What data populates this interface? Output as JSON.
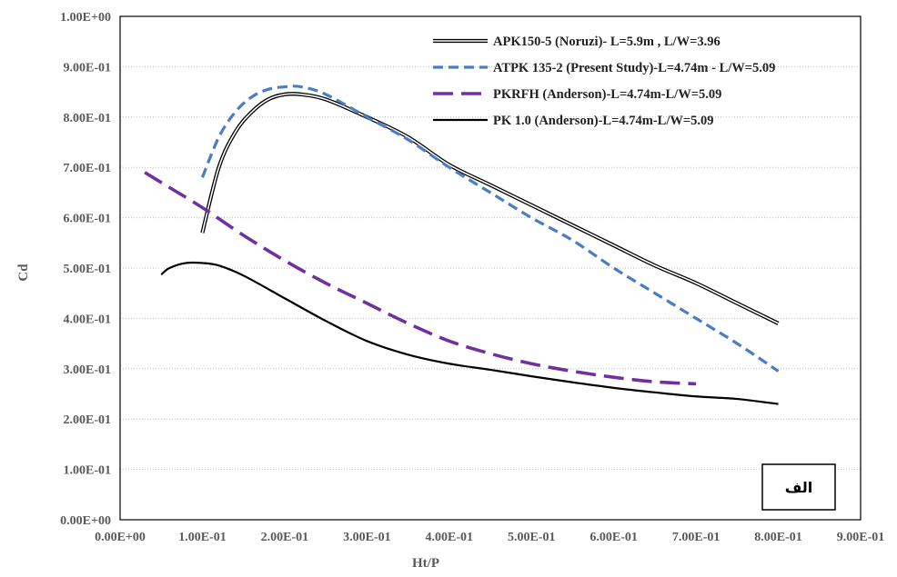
{
  "chart_data": {
    "type": "line",
    "title": "",
    "xlabel": "Ht/P",
    "ylabel": "Cd",
    "xlim": [
      0,
      0.9
    ],
    "ylim": [
      0,
      1.0
    ],
    "x_ticks": [
      0,
      0.1,
      0.2,
      0.3,
      0.4,
      0.5,
      0.6,
      0.7,
      0.8,
      0.9
    ],
    "x_tick_labels": [
      "0.00E+00",
      "1.00E-01",
      "2.00E-01",
      "3.00E-01",
      "4.00E-01",
      "5.00E-01",
      "6.00E-01",
      "7.00E-01",
      "8.00E-01",
      "9.00E-01"
    ],
    "y_ticks": [
      0,
      0.1,
      0.2,
      0.3,
      0.4,
      0.5,
      0.6,
      0.7,
      0.8,
      0.9,
      1.0
    ],
    "y_tick_labels": [
      "0.00E+00",
      "1.00E-01",
      "2.00E-01",
      "3.00E-01",
      "4.00E-01",
      "5.00E-01",
      "6.00E-01",
      "7.00E-01",
      "8.00E-01",
      "9.00E-01",
      "1.00E+00"
    ],
    "grid": true,
    "legend_position": "top-right",
    "inset_label": "الف",
    "series": [
      {
        "name": "APK150-5 (Noruzi)- L=5.9m , L/W=3.96",
        "style": "double-line",
        "color": "#000000",
        "x": [
          0.1,
          0.12,
          0.14,
          0.16,
          0.18,
          0.2,
          0.22,
          0.25,
          0.3,
          0.35,
          0.4,
          0.45,
          0.5,
          0.55,
          0.6,
          0.65,
          0.7,
          0.75,
          0.8
        ],
        "y": [
          0.57,
          0.7,
          0.77,
          0.81,
          0.835,
          0.845,
          0.845,
          0.835,
          0.8,
          0.76,
          0.705,
          0.665,
          0.625,
          0.585,
          0.545,
          0.505,
          0.47,
          0.43,
          0.39
        ]
      },
      {
        "name": "ATPK 135-2 (Present Study)-L=4.74m - L/W=5.09",
        "style": "dashed",
        "color": "#4a7dc3",
        "x": [
          0.1,
          0.12,
          0.14,
          0.16,
          0.18,
          0.2,
          0.22,
          0.25,
          0.3,
          0.35,
          0.4,
          0.45,
          0.5,
          0.55,
          0.6,
          0.65,
          0.7,
          0.75,
          0.8
        ],
        "y": [
          0.68,
          0.76,
          0.81,
          0.84,
          0.855,
          0.86,
          0.86,
          0.845,
          0.8,
          0.755,
          0.7,
          0.65,
          0.6,
          0.555,
          0.5,
          0.45,
          0.4,
          0.35,
          0.295
        ]
      },
      {
        "name": "PKRFH (Anderson)-L=4.74m-L/W=5.09",
        "style": "dashed-thick",
        "color": "#7030a0",
        "x": [
          0.03,
          0.05,
          0.1,
          0.15,
          0.2,
          0.25,
          0.3,
          0.35,
          0.4,
          0.45,
          0.5,
          0.55,
          0.6,
          0.65,
          0.7
        ],
        "y": [
          0.69,
          0.67,
          0.62,
          0.565,
          0.515,
          0.47,
          0.43,
          0.39,
          0.355,
          0.33,
          0.31,
          0.295,
          0.283,
          0.274,
          0.27
        ]
      },
      {
        "name": "PK 1.0 (Anderson)-L=4.74m-L/W=5.09",
        "style": "solid",
        "color": "#000000",
        "x": [
          0.05,
          0.06,
          0.08,
          0.1,
          0.12,
          0.15,
          0.2,
          0.25,
          0.3,
          0.35,
          0.4,
          0.45,
          0.5,
          0.55,
          0.6,
          0.65,
          0.7,
          0.75,
          0.8
        ],
        "y": [
          0.487,
          0.5,
          0.51,
          0.51,
          0.505,
          0.485,
          0.44,
          0.395,
          0.355,
          0.328,
          0.31,
          0.298,
          0.285,
          0.273,
          0.262,
          0.253,
          0.245,
          0.24,
          0.23
        ]
      }
    ]
  }
}
